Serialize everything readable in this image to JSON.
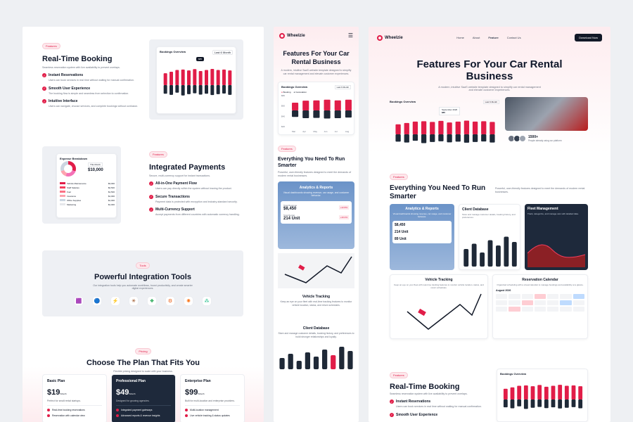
{
  "colors": {
    "accent": "#e11d48",
    "dark": "#1f2937",
    "blue": "#6b93c8",
    "navy": "#1e293b"
  },
  "left": {
    "booking": {
      "tag": "Features",
      "title": "Real-Time Booking",
      "subtitle": "Seamless reservation system with live availability to prevent overlaps.",
      "items": [
        {
          "title": "Instant Reservations",
          "desc": "Users can book services in real time without waiting for manual confirmation."
        },
        {
          "title": "Smooth User Experience",
          "desc": "The booking flow is simple and seamless from selection to confirmation."
        },
        {
          "title": "Intuitive Interface",
          "desc": "Users can navigate, choose services, and complete bookings without confusion."
        }
      ],
      "chart_title": "Bookings Overview",
      "chart_filter": "Last 6 Month",
      "chart_tooltip_label": "September 2026",
      "chart_tooltip_value": "$85"
    },
    "payments": {
      "tag": "Features",
      "title": "Integrated Payments",
      "subtitle": "Secure, multi-currency support for instant transactions.",
      "items": [
        {
          "title": "All-in-One Payment Flow",
          "desc": "Users can pay directly within the system without leaving the product."
        },
        {
          "title": "Secure Transactions",
          "desc": "Payment data is protected with encryption and industry-standard security."
        },
        {
          "title": "Multi-Currency Support",
          "desc": "Accept payments from different countries with automatic currency handling."
        }
      ],
      "expense_title": "Expense Breakdown",
      "expense_filter": "This Month",
      "expense_total": "$10,000",
      "expense_rows": [
        {
          "label": "Vehicle Maintenance",
          "value": "$3,000"
        },
        {
          "label": "Staff Salaries",
          "value": "$2,500"
        },
        {
          "label": "Fuel",
          "value": "$1,500"
        },
        {
          "label": "Insurance",
          "value": "$1,000"
        },
        {
          "label": "Office Supplies",
          "value": "$1,000"
        },
        {
          "label": "Marketing",
          "value": "$1,000"
        }
      ]
    },
    "integrations": {
      "tag": "Tools",
      "title": "Powerful Integration Tools",
      "subtitle": "Our integration tools help you automate workflows, boost productivity, and create smarter digital experiences.",
      "icons": [
        "🟪",
        "🔵",
        "⚡",
        "✳",
        "❖",
        "⚙",
        "✺",
        "⁂"
      ]
    },
    "pricing": {
      "tag": "Pricing",
      "title": "Choose The Plan That Fits You",
      "subtitle": "Flexible pricing designed to scale with your business.",
      "plans": [
        {
          "name": "Basic Plan",
          "price": "$19",
          "period": "/Month",
          "desc": "Perfect for small rental startups.",
          "f1": "Real-time booking reservations",
          "f2": "Reservation with calendar view"
        },
        {
          "name": "Professional Plan",
          "price": "$49",
          "period": "/Month",
          "desc": "Designed for growing agencies.",
          "f1": "Integrated payment gateways",
          "f2": "Advanced reports & revenue insights"
        },
        {
          "name": "Enterprise Plan",
          "price": "$99",
          "period": "/Month",
          "desc": "Built for multi-location and enterprise providers.",
          "f1": "Multi-location management",
          "f2": "Live vehicle tracking & status updates"
        }
      ]
    }
  },
  "mobile": {
    "brand": "Wheelzie",
    "hero_title": "Features For Your Car Rental Business",
    "hero_desc": "A modern, intuitive SaaS website template designed to simplify car rental management and elevate customer experiences.",
    "chart_title": "Bookings Overview",
    "chart_filter": "Last 6 Month",
    "legend_a": "Booking",
    "legend_b": "Cancelation",
    "y_ticks": [
      "$80",
      "$60",
      "$40",
      "$20"
    ],
    "x_ticks": [
      "Mar",
      "Apr",
      "May",
      "Jun",
      "Jul",
      "Aug"
    ],
    "tag": "Features",
    "section_title": "Everything You Need To Run Smarter",
    "section_desc": "Powerful, user-friendly features designed to meet the demands of modern rental businesses.",
    "analytics_title": "Analytics & Reports",
    "analytics_desc": "Visual dashboards showing revenue, car usage, and customer behavior.",
    "stat1_label": "Total Revenue",
    "stat1_value": "$8,450",
    "stat1_delta": "+12.8%",
    "stat2_label": "Total Rental",
    "stat2_value": "214 Unit",
    "stat2_delta": "+10.4%",
    "tracking_title": "Vehicle Tracking",
    "tracking_desc": "Keep an eye on your fleet with real-time tracking features to monitor vehicle location, status, and return schedules.",
    "client_title": "Client Database",
    "client_desc": "Store and manage customer details, booking history, and preferences to build stronger relationships and loyalty.",
    "client_tooltip_label": "September 2026",
    "client_tooltip_value": "$85"
  },
  "desktop": {
    "brand": "Wheelzie",
    "nav": [
      "Home",
      "About",
      "Feature",
      "Contact Us"
    ],
    "cta": "Download Now",
    "hero_title": "Features For Your Car Rental Business",
    "hero_desc": "A modern, intuitive SaaS website template designed to simplify car rental management and elevate customer experiences.",
    "chart_title": "Bookings Overview",
    "chart_filter": "Last 6 Month",
    "chart_tooltip_label": "September 2026",
    "chart_tooltip_value": "$85",
    "people_count": "1500+",
    "people_desc": "People already using our platform",
    "tag": "Features",
    "section_title": "Everything You Need To Run Smarter",
    "section_desc": "Powerful, user-friendly features designed to meet the demands of modern rental businesses.",
    "analytics_title": "Analytics & Reports",
    "analytics_desc": "Visual dashboards showing revenue, car usage, and customer behavior.",
    "stat1_value": "$8,450",
    "stat2_value": "214 Unit",
    "stat3_value": "89 Unit",
    "client_title": "Client Database",
    "client_desc": "Store and manage customer details, booking history, and preferences.",
    "client_tooltip_value": "$85",
    "fleet_title": "Fleet Management",
    "fleet_desc": "Track, categorize, and manage cars with detailed data.",
    "tracking_title": "Vehicle Tracking",
    "tracking_desc": "Keep an eye on your fleet with real-time tracking features to monitor vehicle location, status, and return schedules.",
    "calendar_title": "Reservation Calendar",
    "calendar_desc": "Organized scheduling with a visual calendar to manage bookings and availability at a glance.",
    "calendar_month": "August 2026",
    "booking_tag": "Features",
    "booking_title": "Real-Time Booking",
    "booking_desc": "Seamless reservation system with live availability to prevent overlaps.",
    "booking_items": [
      {
        "title": "Instant Reservations",
        "desc": "Users can book services in real time without waiting for manual confirmation."
      },
      {
        "title": "Smooth User Experience",
        "desc": ""
      }
    ],
    "booking_chart_title": "Bookings Overview"
  },
  "chart_data": [
    {
      "type": "bar",
      "title": "Bookings Overview",
      "series": [
        {
          "name": "Booking",
          "values": [
            55,
            62,
            70,
            72,
            68,
            74,
            65,
            70,
            75,
            70,
            72,
            68
          ]
        },
        {
          "name": "Cancelation",
          "values": [
            40,
            45,
            35,
            48,
            42,
            38,
            44,
            40,
            46,
            42,
            39,
            45
          ]
        }
      ]
    },
    {
      "type": "bar",
      "title": "Bookings Overview",
      "categories": [
        "Mar",
        "Apr",
        "May",
        "Jun",
        "Jul",
        "Aug"
      ],
      "series": [
        {
          "name": "Booking",
          "values": [
            48,
            60,
            62,
            66,
            62,
            66
          ]
        },
        {
          "name": "Cancelation",
          "values": [
            40,
            48,
            46,
            50,
            48,
            44
          ]
        }
      ]
    }
  ]
}
